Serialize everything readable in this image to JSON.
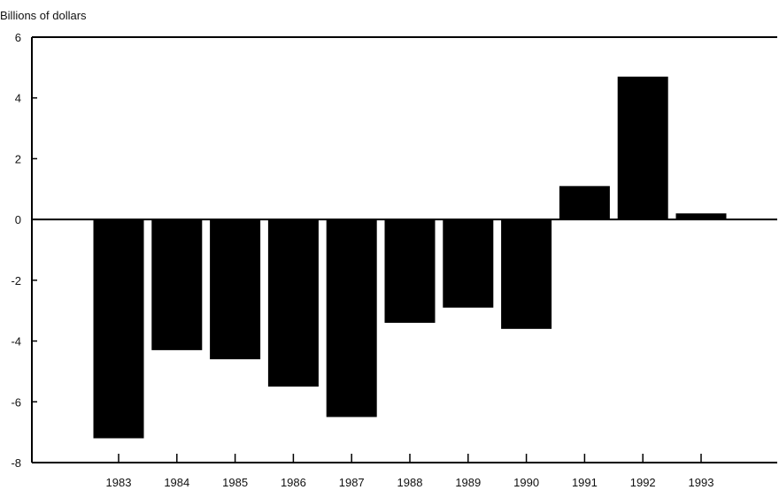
{
  "chart_data": {
    "type": "bar",
    "ylabel": "Billions of dollars",
    "xlabel": "",
    "title": "",
    "categories": [
      "1983",
      "1984",
      "1985",
      "1986",
      "1987",
      "1988",
      "1989",
      "1990",
      "1991",
      "1992",
      "1993"
    ],
    "values": [
      -7.2,
      -4.3,
      -4.6,
      -5.5,
      -6.5,
      -3.4,
      -2.9,
      -3.6,
      1.1,
      4.7,
      0.2
    ],
    "ylim": [
      -8,
      6
    ],
    "yticks": [
      6,
      4,
      2,
      0,
      -2,
      -4,
      -6,
      -8
    ],
    "ytick_labels": [
      "6",
      "4",
      "2",
      "0",
      "-2",
      "-4",
      "-6",
      "-8"
    ],
    "grid": false,
    "bar_color": "#000000"
  }
}
